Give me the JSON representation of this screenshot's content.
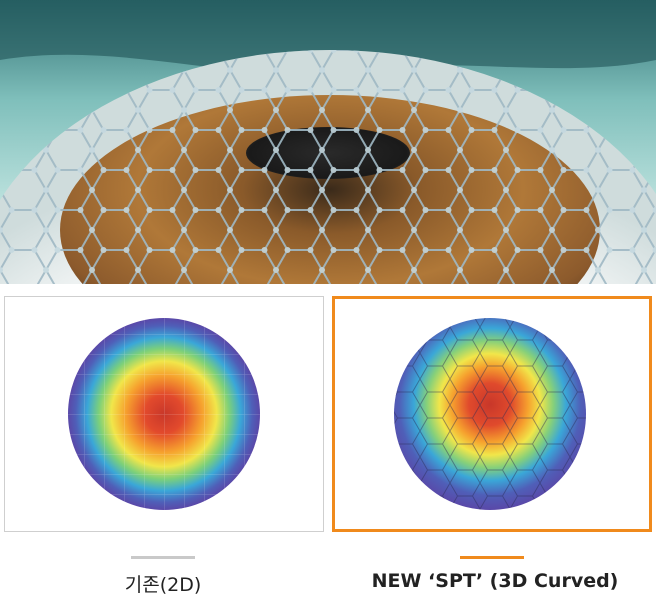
{
  "captions": {
    "conventional": "기존(2D)",
    "new": "NEW ‘SPT’ (3D Curved)"
  },
  "colors": {
    "accent": "#f08a1c",
    "neutral": "#c9c9c9",
    "frame": "#cfcfcf",
    "heat_center": "#d8392a",
    "heat_edge": "#5a48a8"
  },
  "icons": {
    "hero": "eye-with-hexagonal-graphene-lattice",
    "heatmap_2d": "flat-grid-heatmap",
    "heatmap_3d": "curved-hex-heatmap"
  }
}
